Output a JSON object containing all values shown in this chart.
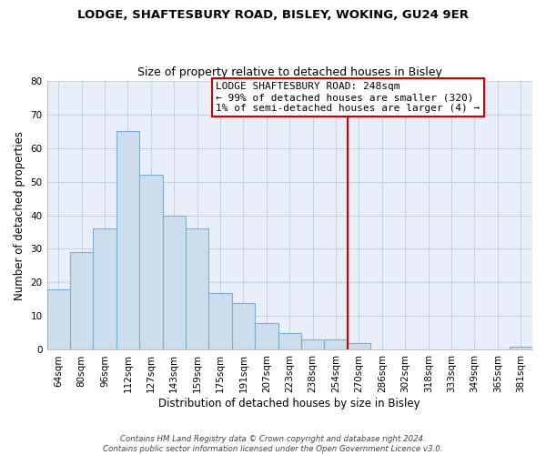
{
  "title": "LODGE, SHAFTESBURY ROAD, BISLEY, WOKING, GU24 9ER",
  "subtitle": "Size of property relative to detached houses in Bisley",
  "xlabel": "Distribution of detached houses by size in Bisley",
  "ylabel": "Number of detached properties",
  "bar_labels": [
    "64sqm",
    "80sqm",
    "96sqm",
    "112sqm",
    "127sqm",
    "143sqm",
    "159sqm",
    "175sqm",
    "191sqm",
    "207sqm",
    "223sqm",
    "238sqm",
    "254sqm",
    "270sqm",
    "286sqm",
    "302sqm",
    "318sqm",
    "333sqm",
    "349sqm",
    "365sqm",
    "381sqm"
  ],
  "bar_values": [
    18,
    29,
    36,
    65,
    52,
    40,
    36,
    17,
    14,
    8,
    5,
    3,
    3,
    2,
    0,
    0,
    0,
    0,
    0,
    0,
    1
  ],
  "bar_color": "#ccdded",
  "bar_edge_color": "#7bafd4",
  "vline_x": 12.5,
  "vline_color": "#cc0000",
  "annotation_line1": "LODGE SHAFTESBURY ROAD: 248sqm",
  "annotation_line2": "← 99% of detached houses are smaller (320)",
  "annotation_line3": "1% of semi-detached houses are larger (4) →",
  "annotation_box_color": "#ffffff",
  "annotation_box_edge": "#cc0000",
  "plot_bg_color": "#e8eff8",
  "ylim": [
    0,
    80
  ],
  "yticks": [
    0,
    10,
    20,
    30,
    40,
    50,
    60,
    70,
    80
  ],
  "footer": "Contains HM Land Registry data © Crown copyright and database right 2024.\nContains public sector information licensed under the Open Government Licence v3.0.",
  "bg_color": "#ffffff",
  "grid_color": "#c0ccd8"
}
